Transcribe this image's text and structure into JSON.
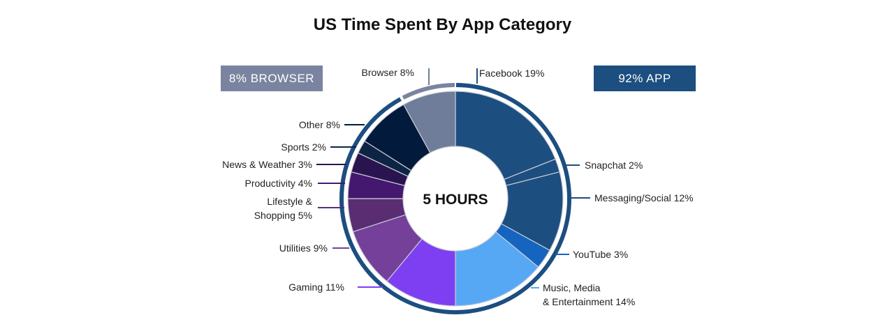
{
  "chart_data": {
    "type": "pie",
    "title": "US Time Spent By App Category",
    "center_label": "5 HOURS",
    "groups": [
      {
        "label": "8% BROWSER",
        "color": "#7a84a0"
      },
      {
        "label": "92% APP",
        "color": "#1c4e80"
      }
    ],
    "slices": [
      {
        "name": "Facebook",
        "label": "Facebook 19%",
        "value": 19,
        "color": "#1c4e80",
        "group": "app"
      },
      {
        "name": "Snapchat",
        "label": "Snapchat 2%",
        "value": 2,
        "color": "#1c4e80",
        "group": "app"
      },
      {
        "name": "Messaging/Social",
        "label": "Messaging/Social 12%",
        "value": 12,
        "color": "#1c4e80",
        "group": "app"
      },
      {
        "name": "YouTube",
        "label": "YouTube 3%",
        "value": 3,
        "color": "#1565c0",
        "group": "app"
      },
      {
        "name": "Music, Media & Entertainment",
        "label": [
          "Music, Media",
          "& Entertainment 14%"
        ],
        "value": 14,
        "color": "#56a8f5",
        "group": "app"
      },
      {
        "name": "Gaming",
        "label": "Gaming 11%",
        "value": 11,
        "color": "#7e3ff2",
        "group": "app"
      },
      {
        "name": "Utilities",
        "label": "Utilities 9%",
        "value": 9,
        "color": "#74409a",
        "group": "app"
      },
      {
        "name": "Lifestyle & Shopping",
        "label": [
          "Lifestyle &",
          "Shopping 5%"
        ],
        "value": 5,
        "color": "#5a2d72",
        "group": "app"
      },
      {
        "name": "Productivity",
        "label": "Productivity 4%",
        "value": 4,
        "color": "#44186e",
        "group": "app"
      },
      {
        "name": "News & Weather",
        "label": "News & Weather 3%",
        "value": 3,
        "color": "#2a1450",
        "group": "app"
      },
      {
        "name": "Sports",
        "label": "Sports 2%",
        "value": 2,
        "color": "#0d2445",
        "group": "app"
      },
      {
        "name": "Other",
        "label": "Other 8%",
        "value": 8,
        "color": "#021a3c",
        "group": "app"
      },
      {
        "name": "Browser",
        "label": "Browser 8%",
        "value": 8,
        "color": "#6f7d9a",
        "group": "browser"
      }
    ]
  }
}
